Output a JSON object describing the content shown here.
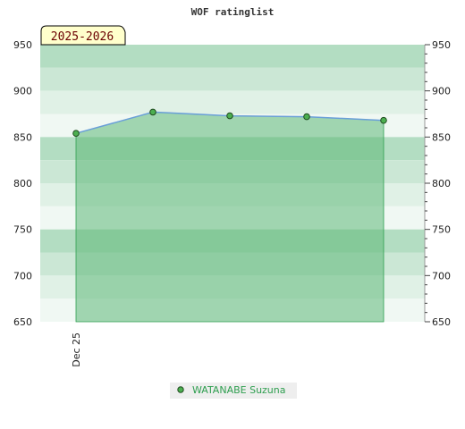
{
  "chart_data": {
    "type": "area",
    "title": "WOF ratinglist",
    "annotation": "2025-2026",
    "xlabel": "",
    "ylabel": "",
    "x_tick_labels": [
      "Dec 25"
    ],
    "ylim": [
      650,
      950
    ],
    "y_ticks": [
      650,
      700,
      750,
      800,
      850,
      900,
      950
    ],
    "y_axis_sides": [
      "left",
      "right"
    ],
    "grid": false,
    "legend_position": "bottom",
    "series": [
      {
        "name": "WATANABE Suzuna",
        "color": "#2e9e4f",
        "values": [
          854,
          877,
          873,
          872,
          868
        ]
      }
    ]
  },
  "colors": {
    "band_dark": "#b3ddc2",
    "band_mid": "#cbe7d5",
    "band_light": "#e0f1e6",
    "band_lightest": "#f0f8f3",
    "area_fill": "#5fb878",
    "line": "#6a9fd8",
    "marker_fill": "#4caf50",
    "marker_stroke": "#1e4b1e",
    "season_bg": "#ffffcc",
    "legend_bg": "#eeeeee",
    "legend_text": "#2e9e4f"
  }
}
